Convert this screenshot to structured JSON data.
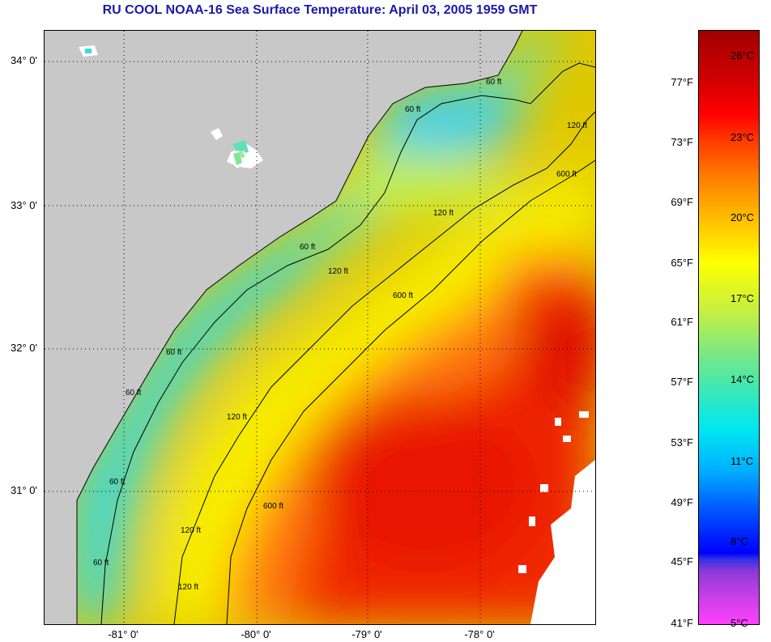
{
  "title": "RU COOL  NOAA-16  Sea Surface Temperature:  April 03, 2005 1959 GMT",
  "map": {
    "lat_labels": [
      "34° 0'",
      "33° 0'",
      "32° 0'",
      "31° 0'"
    ],
    "lon_labels": [
      "-81° 0'",
      "-80° 0'",
      "-79° 0'",
      "-78° 0'"
    ],
    "contour_labels": [
      "60 ft",
      "60 ft",
      "120 ft",
      "120 ft",
      "600 ft",
      "60 ft",
      "60 ft",
      "120 ft",
      "600 ft",
      "60 ft",
      "120 ft",
      "600 ft",
      "60 ft",
      "120 ft",
      "60 ft",
      "120 ft"
    ],
    "colors": {
      "land": "#c8c8c8",
      "cloud": "#ffffff",
      "contour": "#000000"
    }
  },
  "colorbar": {
    "fahrenheit_labels": [
      "77°F",
      "73°F",
      "69°F",
      "65°F",
      "61°F",
      "57°F",
      "53°F",
      "49°F",
      "45°F",
      "41°F"
    ],
    "celsius_labels": [
      "26°C",
      "23°C",
      "20°C",
      "17°C",
      "14°C",
      "11°C",
      "8°C",
      "5°C"
    ]
  }
}
